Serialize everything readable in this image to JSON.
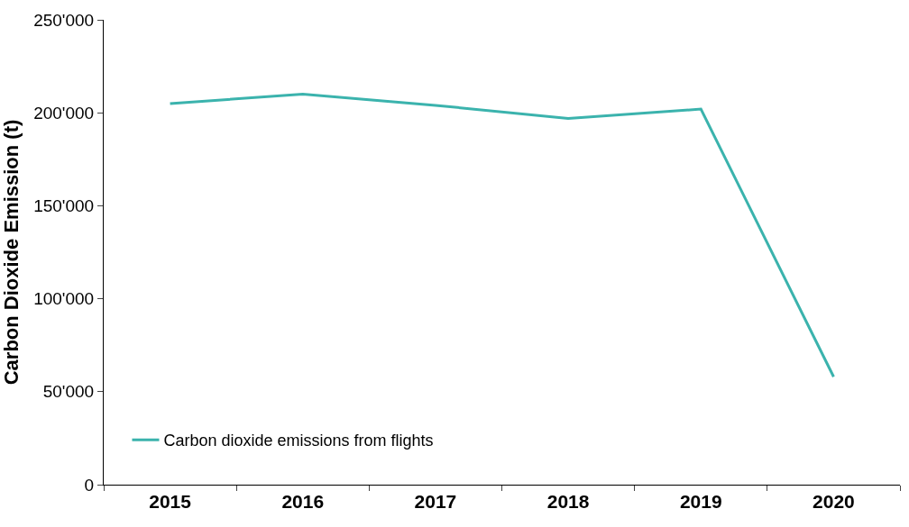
{
  "chart_data": {
    "type": "line",
    "ylabel": "Carbon Dioxide Emission (t)",
    "categories": [
      "2015",
      "2016",
      "2017",
      "2018",
      "2019",
      "2020"
    ],
    "series": [
      {
        "name": "Carbon dioxide emissions from flights",
        "color": "#3bb3ad",
        "values": [
          205000,
          210000,
          204000,
          197000,
          202000,
          58000
        ]
      }
    ],
    "ylim": [
      0,
      250000
    ],
    "yticks": [
      {
        "value": 0,
        "label": "0"
      },
      {
        "value": 50000,
        "label": "50'000"
      },
      {
        "value": 100000,
        "label": "100'000"
      },
      {
        "value": 150000,
        "label": "150'000"
      },
      {
        "value": 200000,
        "label": "200'000"
      },
      {
        "value": 250000,
        "label": "250'000"
      }
    ],
    "grid": false,
    "legend": "bottom left",
    "marker": "none",
    "line_style": "solid"
  }
}
